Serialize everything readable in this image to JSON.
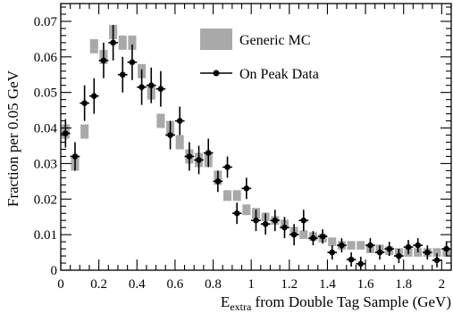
{
  "chart_data": {
    "type": "scatter",
    "title": "",
    "xlabel_main": "E",
    "xlabel_sub": "extra",
    "xlabel_rest": " from Double Tag Sample (GeV)",
    "ylabel": "Fraction per 0.05 GeV",
    "xlim": [
      0,
      2.05
    ],
    "ylim": [
      0,
      0.075
    ],
    "x_ticks": [
      0,
      0.2,
      0.4,
      0.6,
      0.8,
      1,
      1.2,
      1.4,
      1.6,
      1.8,
      2
    ],
    "x_tick_labels": [
      "0",
      "0.2",
      "0.4",
      "0.6",
      "0.8",
      "1",
      "1.2",
      "1.4",
      "1.6",
      "1.8",
      "2"
    ],
    "y_ticks": [
      0,
      0.01,
      0.02,
      0.03,
      0.04,
      0.05,
      0.06,
      0.07
    ],
    "y_tick_labels": [
      "0",
      "0.01",
      "0.02",
      "0.03",
      "0.04",
      "0.05",
      "0.06",
      "0.07"
    ],
    "grid": false,
    "legend_position": "top-right",
    "colors": {
      "mc": "#a9a9a9",
      "data": "#000000",
      "axis": "#000000"
    },
    "series": [
      {
        "name": "Generic MC",
        "style": "box",
        "x": [
          0.025,
          0.075,
          0.125,
          0.175,
          0.225,
          0.275,
          0.325,
          0.375,
          0.425,
          0.475,
          0.525,
          0.575,
          0.625,
          0.675,
          0.725,
          0.775,
          0.825,
          0.875,
          0.925,
          0.975,
          1.025,
          1.075,
          1.125,
          1.175,
          1.225,
          1.275,
          1.325,
          1.375,
          1.425,
          1.475,
          1.525,
          1.575,
          1.625,
          1.675,
          1.725,
          1.775,
          1.825,
          1.875,
          1.925,
          1.975,
          2.025
        ],
        "y": [
          0.039,
          0.03,
          0.039,
          0.063,
          0.06,
          0.067,
          0.064,
          0.064,
          0.056,
          0.05,
          0.042,
          0.04,
          0.036,
          0.032,
          0.031,
          0.031,
          0.026,
          0.021,
          0.021,
          0.017,
          0.016,
          0.015,
          0.014,
          0.013,
          0.011,
          0.01,
          0.0095,
          0.009,
          0.008,
          0.007,
          0.007,
          0.007,
          0.006,
          0.006,
          0.0055,
          0.005,
          0.005,
          0.005,
          0.005,
          0.005,
          0.005
        ],
        "err": [
          0.002,
          0.002,
          0.002,
          0.002,
          0.002,
          0.002,
          0.002,
          0.002,
          0.002,
          0.002,
          0.002,
          0.002,
          0.002,
          0.002,
          0.002,
          0.002,
          0.002,
          0.0015,
          0.0015,
          0.0015,
          0.0015,
          0.0012,
          0.0012,
          0.0012,
          0.0012,
          0.0012,
          0.0012,
          0.0012,
          0.0012,
          0.0012,
          0.0012,
          0.0012,
          0.0012,
          0.0012,
          0.0012,
          0.0012,
          0.0012,
          0.0012,
          0.0012,
          0.0012,
          0.0012
        ]
      },
      {
        "name": "On Peak Data",
        "style": "marker-errorbar",
        "x": [
          0.025,
          0.075,
          0.125,
          0.175,
          0.225,
          0.275,
          0.325,
          0.375,
          0.425,
          0.475,
          0.525,
          0.575,
          0.625,
          0.675,
          0.725,
          0.775,
          0.825,
          0.875,
          0.925,
          0.975,
          1.025,
          1.075,
          1.125,
          1.175,
          1.225,
          1.275,
          1.325,
          1.375,
          1.425,
          1.475,
          1.525,
          1.575,
          1.625,
          1.675,
          1.725,
          1.775,
          1.825,
          1.875,
          1.925,
          1.975,
          2.025
        ],
        "y": [
          0.0385,
          0.032,
          0.047,
          0.049,
          0.059,
          0.064,
          0.055,
          0.0585,
          0.0515,
          0.052,
          0.051,
          0.038,
          0.042,
          0.032,
          0.031,
          0.033,
          0.025,
          0.029,
          0.016,
          0.023,
          0.014,
          0.013,
          0.014,
          0.012,
          0.01,
          0.014,
          0.009,
          0.0095,
          0.005,
          0.007,
          0.003,
          0.0018,
          0.007,
          0.005,
          0.006,
          0.004,
          0.0065,
          0.007,
          0.005,
          0.0028,
          0.006
        ],
        "err": [
          0.004,
          0.004,
          0.005,
          0.005,
          0.005,
          0.005,
          0.005,
          0.005,
          0.005,
          0.005,
          0.005,
          0.004,
          0.004,
          0.004,
          0.004,
          0.004,
          0.003,
          0.003,
          0.003,
          0.003,
          0.003,
          0.003,
          0.003,
          0.003,
          0.003,
          0.003,
          0.002,
          0.002,
          0.002,
          0.002,
          0.002,
          0.002,
          0.002,
          0.002,
          0.002,
          0.002,
          0.002,
          0.002,
          0.002,
          0.002,
          0.002
        ]
      }
    ]
  }
}
